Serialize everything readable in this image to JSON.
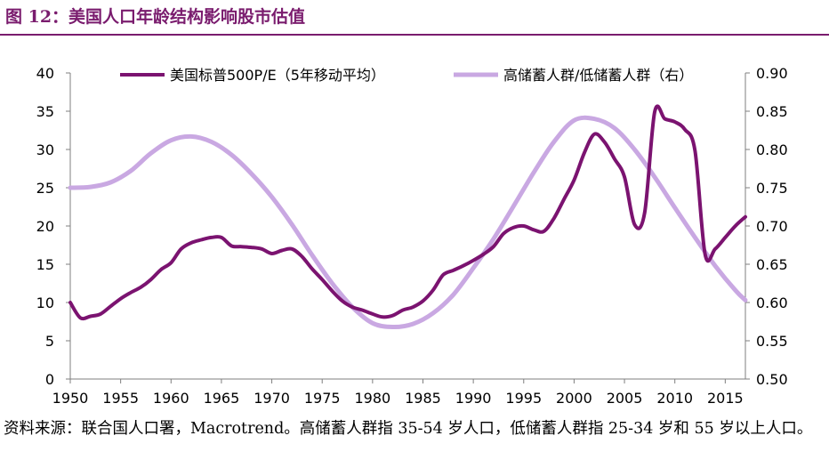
{
  "figure": {
    "title": "图 12：美国人口年龄结构影响股市估值"
  },
  "source": {
    "text": "资料来源：联合国人口署，Macrotrend。高储蓄人群指 35-54 岁人口，低储蓄人群指 25-34 岁和 55 岁以上人口。"
  },
  "colors": {
    "title": "#7a1c6e",
    "series_pe": "#7b1370",
    "series_ratio": "#c9a8e2",
    "axis": "#7f7f7f"
  },
  "chart_data": {
    "type": "line",
    "x_ticks": [
      1950,
      1955,
      1960,
      1965,
      1970,
      1975,
      1980,
      1985,
      1990,
      1995,
      2000,
      2005,
      2010,
      2015
    ],
    "xlim": [
      1950,
      2017
    ],
    "y_left": {
      "ticks": [
        "0",
        "5",
        "10",
        "15",
        "20",
        "25",
        "30",
        "35",
        "40"
      ],
      "lim": [
        0,
        40
      ]
    },
    "y_right": {
      "ticks": [
        "0.50",
        "0.55",
        "0.60",
        "0.65",
        "0.70",
        "0.75",
        "0.80",
        "0.85",
        "0.90"
      ],
      "lim": [
        0.5,
        0.9
      ]
    },
    "legend_position": "top",
    "series": [
      {
        "name": "美国标普500P/E（5年移动平均）",
        "axis": "left",
        "x": [
          1950,
          1951,
          1952,
          1953,
          1954,
          1955,
          1956,
          1957,
          1958,
          1959,
          1960,
          1961,
          1962,
          1963,
          1964,
          1965,
          1966,
          1967,
          1968,
          1969,
          1970,
          1971,
          1972,
          1973,
          1974,
          1975,
          1976,
          1977,
          1978,
          1979,
          1980,
          1981,
          1982,
          1983,
          1984,
          1985,
          1986,
          1987,
          1988,
          1989,
          1990,
          1991,
          1992,
          1993,
          1994,
          1995,
          1996,
          1997,
          1998,
          1999,
          2000,
          2001,
          2002,
          2003,
          2004,
          2005,
          2006,
          2007,
          2008,
          2009,
          2010,
          2011,
          2012,
          2013,
          2014,
          2015,
          2016,
          2017
        ],
        "y": [
          10,
          8,
          8.2,
          8.5,
          9.5,
          10.5,
          11.3,
          12,
          13,
          14.3,
          15.2,
          17,
          17.8,
          18.2,
          18.5,
          18.5,
          17.4,
          17.3,
          17.2,
          17,
          16.4,
          16.8,
          17,
          16,
          14.4,
          13,
          11.5,
          10.2,
          9.4,
          9,
          8.5,
          8.1,
          8.3,
          9,
          9.4,
          10.2,
          11.6,
          13.6,
          14.2,
          14.8,
          15.5,
          16.3,
          17.3,
          19,
          19.8,
          20,
          19.5,
          19.3,
          21,
          23.5,
          26,
          29.5,
          32,
          31,
          28.8,
          26.4,
          20.2,
          21.7,
          34.9,
          34,
          33.6,
          32.6,
          29.8,
          16.3,
          17,
          18.5,
          20,
          21.2
        ]
      },
      {
        "name": "高储蓄人群/低储蓄人群（右）",
        "axis": "right",
        "x": [
          1950,
          1952,
          1954,
          1956,
          1958,
          1960,
          1962,
          1964,
          1966,
          1968,
          1970,
          1972,
          1974,
          1976,
          1978,
          1980,
          1982,
          1984,
          1986,
          1988,
          1990,
          1992,
          1994,
          1996,
          1998,
          2000,
          2002,
          2004,
          2006,
          2008,
          2010,
          2012,
          2014,
          2016,
          2017
        ],
        "y": [
          0.75,
          0.751,
          0.757,
          0.772,
          0.795,
          0.812,
          0.817,
          0.81,
          0.793,
          0.768,
          0.738,
          0.702,
          0.662,
          0.625,
          0.594,
          0.573,
          0.568,
          0.572,
          0.586,
          0.61,
          0.645,
          0.683,
          0.726,
          0.77,
          0.81,
          0.838,
          0.84,
          0.828,
          0.8,
          0.764,
          0.724,
          0.685,
          0.648,
          0.616,
          0.603
        ]
      }
    ]
  }
}
